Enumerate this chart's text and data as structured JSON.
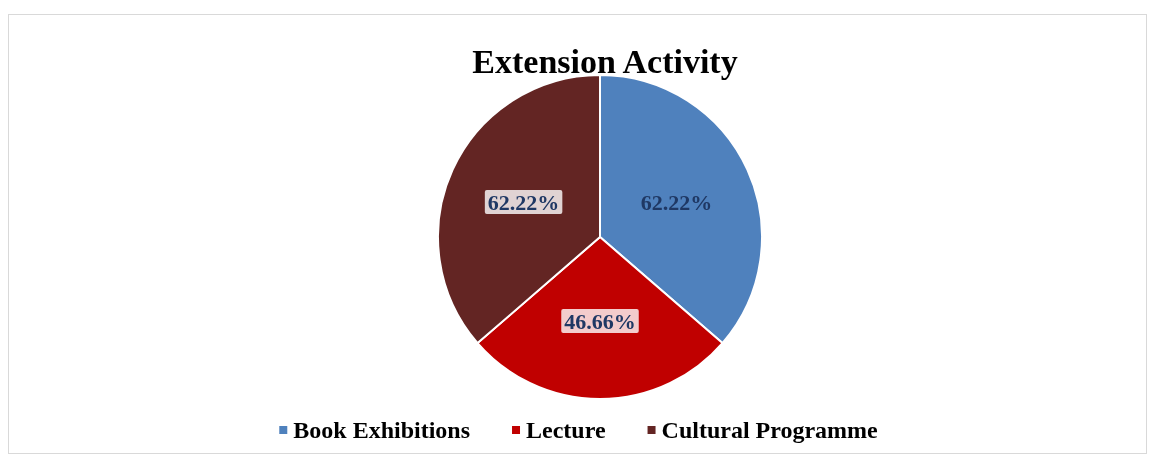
{
  "chart_data": {
    "type": "pie",
    "title": "Extension Activity",
    "categories": [
      "Book Exhibitions",
      "Lecture",
      "Cultural Programme"
    ],
    "values": [
      62.22,
      46.66,
      62.22
    ],
    "colors": [
      "#4f81bd",
      "#c00000",
      "#632523"
    ],
    "value_labels": [
      "62.22%",
      "46.66%",
      "62.22%"
    ],
    "legend": "bottom"
  }
}
